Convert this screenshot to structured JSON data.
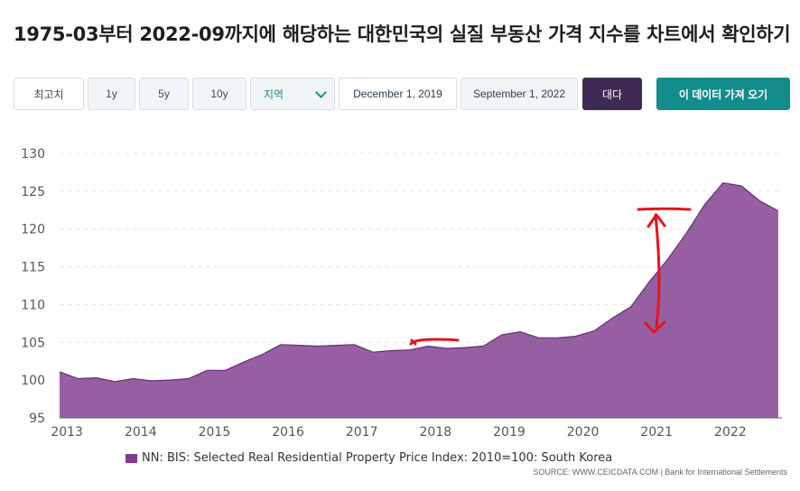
{
  "page": {
    "title": "1975-03부터 2022-09까지에 해당하는 대한민국의 실질 부동산 가격 지수를 차트에서 확인하기"
  },
  "toolbar": {
    "max_label": "최고치",
    "range_1y": "1y",
    "range_5y": "5y",
    "range_10y": "10y",
    "region_label": "지역",
    "start_date": "December 1, 2019",
    "end_date": "September 1, 2022",
    "apply_label": "대다",
    "get_data_label": "이 데이터 가져 오기"
  },
  "colors": {
    "series": "#7e3c8c",
    "annotation": "#e8121a",
    "apply_bg": "#3f2a55",
    "get_data_bg": "#128c8c"
  },
  "chart_data": {
    "type": "area",
    "title": "",
    "xlabel": "",
    "ylabel": "",
    "ylim": [
      95,
      130
    ],
    "xlim": [
      2012.9,
      2022.7
    ],
    "y_ticks": [
      95,
      100,
      105,
      110,
      115,
      120,
      125,
      130
    ],
    "x_ticks": [
      "2013",
      "2014",
      "2015",
      "2016",
      "2017",
      "2018",
      "2019",
      "2020",
      "2021",
      "2022"
    ],
    "grid": true,
    "series": [
      {
        "name": "NN: BIS: Selected Real Residential Property Price Index: 2010=100: South Korea",
        "x": [
          2012.9,
          2013.15,
          2013.4,
          2013.65,
          2013.9,
          2014.15,
          2014.4,
          2014.65,
          2014.9,
          2015.15,
          2015.4,
          2015.65,
          2015.9,
          2016.15,
          2016.4,
          2016.65,
          2016.9,
          2017.15,
          2017.4,
          2017.65,
          2017.9,
          2018.15,
          2018.4,
          2018.65,
          2018.9,
          2019.15,
          2019.4,
          2019.65,
          2019.9,
          2020.15,
          2020.4,
          2020.65,
          2020.9,
          2021.15,
          2021.4,
          2021.65,
          2021.9,
          2022.15,
          2022.4,
          2022.65
        ],
        "values": [
          101.1,
          100.2,
          100.3,
          99.8,
          100.2,
          99.9,
          100.0,
          100.2,
          101.3,
          101.3,
          102.4,
          103.4,
          104.7,
          104.6,
          104.5,
          104.6,
          104.7,
          103.7,
          103.9,
          104.0,
          104.5,
          104.2,
          104.3,
          104.5,
          106.0,
          106.4,
          105.6,
          105.6,
          105.8,
          106.5,
          108.2,
          109.7,
          113.0,
          116.0,
          119.4,
          123.2,
          126.1,
          125.7,
          123.7,
          122.4
        ]
      }
    ],
    "legend": "bottom-left",
    "source": "SOURCE: WWW.CEICDATA.COM | Bank for International Settlements"
  }
}
